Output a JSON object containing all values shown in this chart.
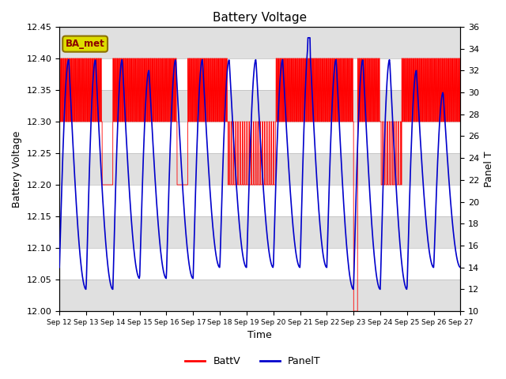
{
  "title": "Battery Voltage",
  "xlabel": "Time",
  "ylabel_left": "Battery Voltage",
  "ylabel_right": "Panel T",
  "xlim": [
    0,
    15
  ],
  "ylim_left": [
    12.0,
    12.45
  ],
  "ylim_right": [
    10,
    36
  ],
  "yticks_left": [
    12.0,
    12.05,
    12.1,
    12.15,
    12.2,
    12.25,
    12.3,
    12.35,
    12.4,
    12.45
  ],
  "yticks_right": [
    10,
    12,
    14,
    16,
    18,
    20,
    22,
    24,
    26,
    28,
    30,
    32,
    34,
    36
  ],
  "xtick_labels": [
    "Sep 12",
    "Sep 13",
    "Sep 14",
    "Sep 15",
    "Sep 16",
    "Sep 17",
    "Sep 18",
    "Sep 19",
    "Sep 20",
    "Sep 21",
    "Sep 22",
    "Sep 23",
    "Sep 24",
    "Sep 25",
    "Sep 26",
    "Sep 27"
  ],
  "batt_color": "#FF0000",
  "panel_color": "#0000CC",
  "ba_met_bg": "#DDDD00",
  "ba_met_text": "#8B0000",
  "background_color": "#FFFFFF",
  "band_color": "#E0E0E0",
  "figsize": [
    6.4,
    4.8
  ],
  "dpi": 100
}
